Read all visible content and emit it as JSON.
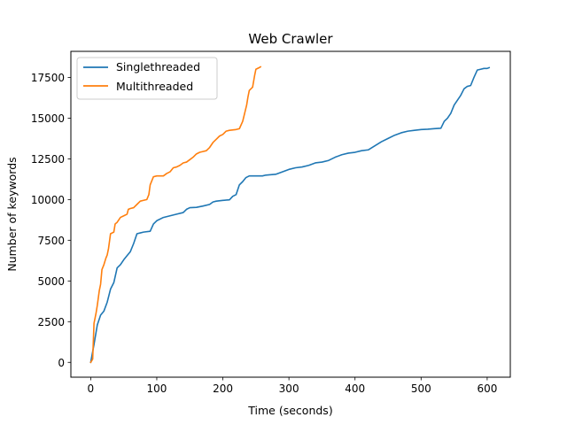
{
  "chart_data": {
    "type": "line",
    "title": "Web Crawler",
    "xlabel": "Time (seconds)",
    "ylabel": "Number of keywords",
    "xlim": [
      -30,
      635
    ],
    "ylim": [
      -910,
      19100
    ],
    "xticks": [
      0,
      100,
      200,
      300,
      400,
      500,
      600
    ],
    "yticks": [
      0,
      2500,
      5000,
      7500,
      10000,
      12500,
      15000,
      17500
    ],
    "grid": false,
    "legend_position": "upper-left",
    "series": [
      {
        "name": "Singlethreaded",
        "color": "#1f77b4",
        "points": [
          [
            0,
            0
          ],
          [
            5,
            1100
          ],
          [
            10,
            2300
          ],
          [
            15,
            2900
          ],
          [
            20,
            3150
          ],
          [
            25,
            3700
          ],
          [
            30,
            4500
          ],
          [
            35,
            4900
          ],
          [
            40,
            5800
          ],
          [
            45,
            6000
          ],
          [
            50,
            6300
          ],
          [
            55,
            6550
          ],
          [
            60,
            6800
          ],
          [
            65,
            7300
          ],
          [
            70,
            7900
          ],
          [
            75,
            7950
          ],
          [
            80,
            8000
          ],
          [
            90,
            8050
          ],
          [
            95,
            8500
          ],
          [
            100,
            8700
          ],
          [
            110,
            8900
          ],
          [
            120,
            9000
          ],
          [
            130,
            9100
          ],
          [
            140,
            9200
          ],
          [
            145,
            9400
          ],
          [
            150,
            9500
          ],
          [
            160,
            9520
          ],
          [
            170,
            9600
          ],
          [
            180,
            9700
          ],
          [
            185,
            9850
          ],
          [
            190,
            9900
          ],
          [
            200,
            9950
          ],
          [
            210,
            9980
          ],
          [
            215,
            10200
          ],
          [
            220,
            10300
          ],
          [
            225,
            10900
          ],
          [
            230,
            11100
          ],
          [
            235,
            11350
          ],
          [
            240,
            11450
          ],
          [
            260,
            11450
          ],
          [
            265,
            11500
          ],
          [
            280,
            11550
          ],
          [
            290,
            11700
          ],
          [
            300,
            11850
          ],
          [
            310,
            11950
          ],
          [
            320,
            12000
          ],
          [
            330,
            12100
          ],
          [
            340,
            12250
          ],
          [
            350,
            12300
          ],
          [
            360,
            12400
          ],
          [
            370,
            12600
          ],
          [
            380,
            12750
          ],
          [
            390,
            12850
          ],
          [
            400,
            12900
          ],
          [
            410,
            13000
          ],
          [
            420,
            13050
          ],
          [
            430,
            13300
          ],
          [
            440,
            13550
          ],
          [
            450,
            13750
          ],
          [
            460,
            13950
          ],
          [
            470,
            14100
          ],
          [
            480,
            14200
          ],
          [
            490,
            14250
          ],
          [
            500,
            14300
          ],
          [
            510,
            14320
          ],
          [
            520,
            14350
          ],
          [
            530,
            14380
          ],
          [
            535,
            14800
          ],
          [
            540,
            15000
          ],
          [
            545,
            15300
          ],
          [
            550,
            15800
          ],
          [
            555,
            16100
          ],
          [
            560,
            16400
          ],
          [
            565,
            16800
          ],
          [
            570,
            16950
          ],
          [
            575,
            17000
          ],
          [
            580,
            17500
          ],
          [
            585,
            17950
          ],
          [
            590,
            18000
          ],
          [
            595,
            18050
          ],
          [
            600,
            18050
          ],
          [
            603,
            18100
          ]
        ]
      },
      {
        "name": "Multithreaded",
        "color": "#ff7f0e",
        "points": [
          [
            0,
            0
          ],
          [
            3,
            200
          ],
          [
            5,
            2400
          ],
          [
            8,
            3000
          ],
          [
            10,
            3500
          ],
          [
            13,
            4400
          ],
          [
            15,
            4800
          ],
          [
            17,
            5700
          ],
          [
            20,
            6000
          ],
          [
            23,
            6400
          ],
          [
            25,
            6600
          ],
          [
            27,
            7000
          ],
          [
            30,
            7900
          ],
          [
            35,
            8000
          ],
          [
            37,
            8500
          ],
          [
            40,
            8600
          ],
          [
            45,
            8900
          ],
          [
            50,
            9000
          ],
          [
            55,
            9100
          ],
          [
            57,
            9400
          ],
          [
            60,
            9450
          ],
          [
            65,
            9500
          ],
          [
            70,
            9700
          ],
          [
            75,
            9900
          ],
          [
            80,
            9950
          ],
          [
            85,
            10000
          ],
          [
            88,
            10300
          ],
          [
            90,
            10900
          ],
          [
            95,
            11400
          ],
          [
            100,
            11450
          ],
          [
            110,
            11450
          ],
          [
            115,
            11600
          ],
          [
            120,
            11700
          ],
          [
            125,
            11950
          ],
          [
            130,
            12000
          ],
          [
            135,
            12100
          ],
          [
            140,
            12250
          ],
          [
            145,
            12300
          ],
          [
            150,
            12450
          ],
          [
            155,
            12600
          ],
          [
            160,
            12800
          ],
          [
            165,
            12900
          ],
          [
            170,
            12950
          ],
          [
            175,
            13000
          ],
          [
            180,
            13200
          ],
          [
            185,
            13500
          ],
          [
            190,
            13700
          ],
          [
            195,
            13900
          ],
          [
            200,
            14000
          ],
          [
            205,
            14200
          ],
          [
            210,
            14250
          ],
          [
            220,
            14300
          ],
          [
            225,
            14350
          ],
          [
            230,
            14800
          ],
          [
            233,
            15300
          ],
          [
            236,
            15800
          ],
          [
            238,
            16300
          ],
          [
            240,
            16700
          ],
          [
            245,
            16900
          ],
          [
            248,
            17600
          ],
          [
            250,
            18000
          ],
          [
            255,
            18100
          ],
          [
            257,
            18150
          ]
        ]
      }
    ]
  }
}
